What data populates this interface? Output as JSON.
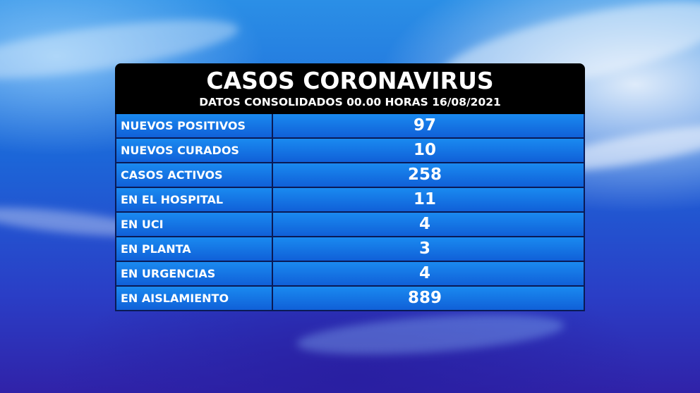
{
  "title": "CASOS CORONAVIRUS",
  "subtitle": "DATOS CONSOLIDADOS 00.00 HORAS 16/08/2021",
  "rows": [
    {
      "label": "NUEVOS POSITIVOS",
      "value": "97"
    },
    {
      "label": "NUEVOS CURADOS",
      "value": "10"
    },
    {
      "label": "CASOS ACTIVOS",
      "value": "258"
    },
    {
      "label": "EN EL HOSPITAL",
      "value": "11"
    },
    {
      "label": "EN UCI",
      "value": "4"
    },
    {
      "label": "EN PLANTA",
      "value": "3"
    },
    {
      "label": "EN URGENCIAS",
      "value": "4"
    },
    {
      "label": "EN AISLAMIENTO",
      "value": "889"
    }
  ]
}
